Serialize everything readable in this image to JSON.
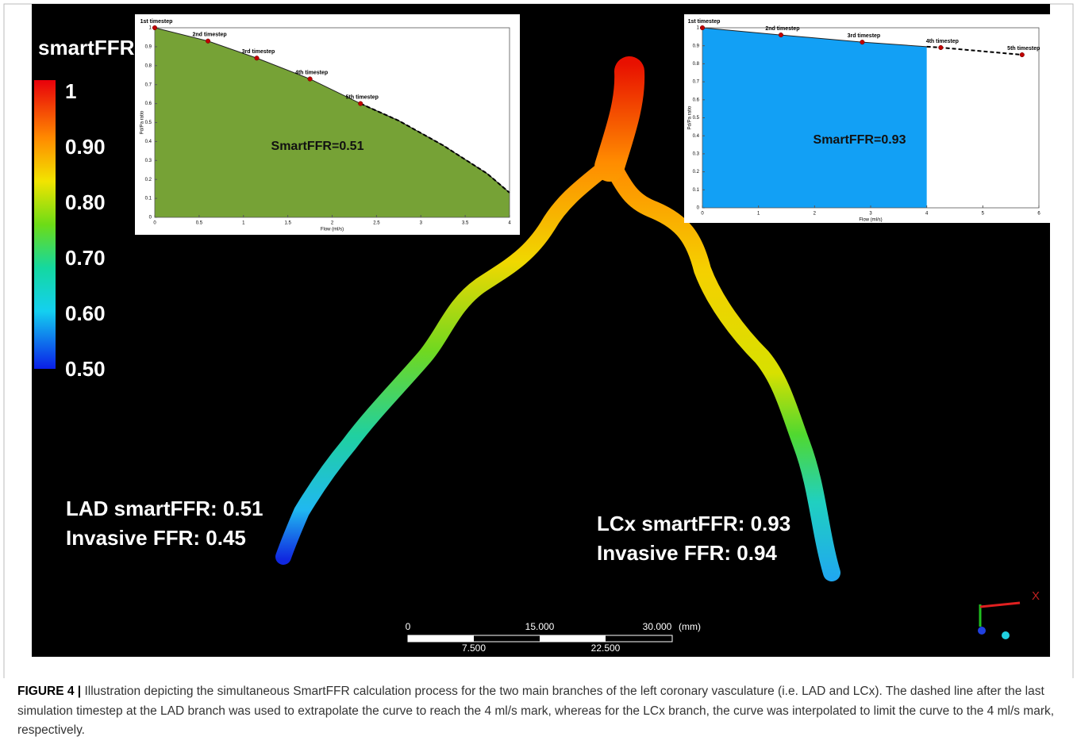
{
  "colorbar": {
    "title": "smartFFR",
    "range": [
      0.5,
      1
    ],
    "ticks": [
      1,
      {
        "value": 0.9,
        "label": "0.90"
      },
      {
        "value": 0.8,
        "label": "0.80"
      },
      {
        "value": 0.7,
        "label": "0.70"
      },
      {
        "value": 0.6,
        "label": "0.60"
      },
      {
        "value": 0.5,
        "label": "0.50"
      }
    ]
  },
  "chart_data": [
    {
      "type": "area",
      "xlabel": "Flow (ml/s)",
      "ylabel": "Pd/Pa ratio",
      "annotation": "SmartFFR=0.51",
      "color": "#76a236",
      "xlim": [
        0,
        4
      ],
      "ylim": [
        0,
        1
      ],
      "xticks": [
        0,
        0.5,
        1,
        1.5,
        2,
        2.5,
        3,
        3.5,
        4
      ],
      "yticks": [
        0,
        0.1,
        0.2,
        0.3,
        0.4,
        0.5,
        0.6,
        0.7,
        0.8,
        0.9,
        1
      ],
      "area": {
        "x": [
          0,
          0.6,
          1.15,
          1.75,
          2.32,
          2.75,
          3.25,
          3.75,
          4
        ],
        "values": [
          1,
          0.93,
          0.84,
          0.73,
          0.6,
          0.51,
          0.38,
          0.23,
          0.13
        ]
      },
      "extrapolation": {
        "x": [
          2.32,
          2.75,
          3.25,
          3.75,
          4
        ],
        "values": [
          0.6,
          0.51,
          0.38,
          0.23,
          0.13
        ]
      },
      "points": {
        "color": "#c00000",
        "labels": [
          "1st timestep",
          "2nd timestep",
          "3rd timestep",
          "4th timestep",
          "5th timestep"
        ],
        "x": [
          0,
          0.6,
          1.15,
          1.75,
          2.32
        ],
        "values": [
          1,
          0.93,
          0.84,
          0.73,
          0.6
        ]
      }
    },
    {
      "type": "area",
      "xlabel": "Flow (ml/s)",
      "ylabel": "Pd/Pa ratio",
      "annotation": "SmartFFR=0.93",
      "color": "#12a0f5",
      "xlim": [
        0,
        6
      ],
      "ylim": [
        0,
        1
      ],
      "xticks": [
        0,
        1,
        2,
        3,
        4,
        5,
        6
      ],
      "yticks": [
        0,
        0.1,
        0.2,
        0.3,
        0.4,
        0.5,
        0.6,
        0.7,
        0.8,
        0.9,
        1
      ],
      "area": {
        "x": [
          0,
          1.4,
          2.85,
          4
        ],
        "values": [
          1,
          0.96,
          0.92,
          0.895
        ]
      },
      "extrapolation": {
        "x": [
          4,
          4.25,
          5.7
        ],
        "values": [
          0.895,
          0.89,
          0.85
        ]
      },
      "points": {
        "color": "#c00000",
        "labels": [
          "1st timestep",
          "2nd timestep",
          "3rd timestep",
          "4th timestep",
          "5th timestep"
        ],
        "x": [
          0,
          1.4,
          2.85,
          4.25,
          5.7
        ],
        "values": [
          1,
          0.96,
          0.92,
          0.89,
          0.85
        ]
      }
    }
  ],
  "annotations": {
    "lad": [
      "LAD smartFFR: 0.51",
      "Invasive FFR: 0.45"
    ],
    "lcx": [
      "LCx smartFFR: 0.93",
      "Invasive FFR: 0.94"
    ]
  },
  "scale_bar": {
    "top": [
      "0",
      "15.000",
      "30.000",
      "(mm)"
    ],
    "bottom": [
      "7.500",
      "22.500"
    ]
  },
  "axes_triad": {
    "x": "X"
  },
  "caption": {
    "label": "FIGURE 4 |",
    "text": "Illustration depicting the simultaneous SmartFFR calculation process for the two main branches of the left coronary vasculature (i.e. LAD and LCx). The dashed line after the last simulation timestep at the LAD branch was used to extrapolate the curve to reach the 4 ml/s mark, whereas for the LCx branch, the curve was interpolated to limit the curve to the 4 ml/s mark, respectively."
  }
}
